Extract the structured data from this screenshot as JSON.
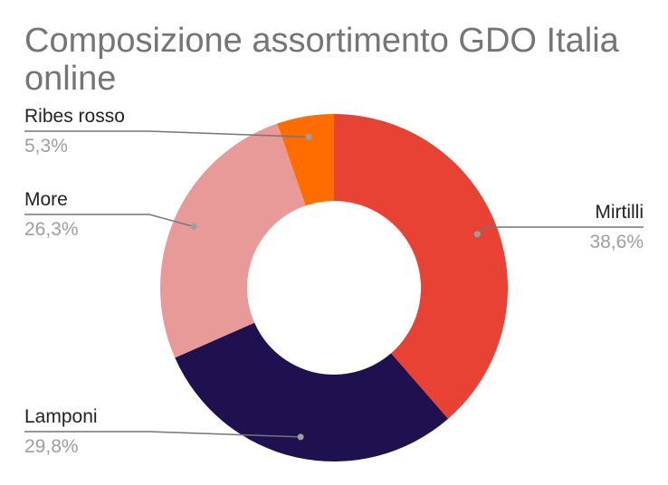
{
  "chart_data": {
    "type": "pie",
    "donut": true,
    "title": "Composizione assortimento GDO Italia online",
    "slices": [
      {
        "label": "Mirtilli",
        "value": 38.6,
        "value_label": "38,6%",
        "color": "#e84235",
        "label_side": "right"
      },
      {
        "label": "Lamponi",
        "value": 29.8,
        "value_label": "29,8%",
        "color": "#1f1150",
        "label_side": "left"
      },
      {
        "label": "More",
        "value": 26.3,
        "value_label": "26,3%",
        "color": "#e89a98",
        "label_side": "left"
      },
      {
        "label": "Ribes rosso",
        "value": 5.3,
        "value_label": "5,3%",
        "color": "#ff6d01",
        "label_side": "left"
      }
    ],
    "legend": "none",
    "leader_line_color": "#757575"
  }
}
